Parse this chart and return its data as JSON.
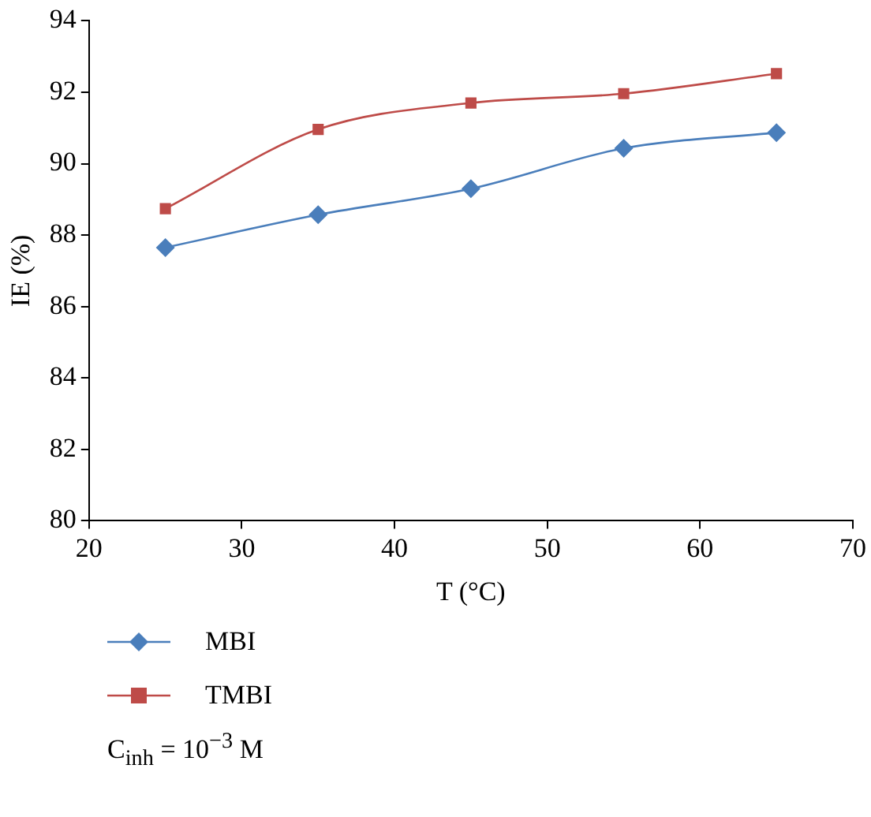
{
  "chart_data": {
    "type": "line",
    "xlabel": "T (°C)",
    "ylabel": "IE (%)",
    "x": [
      25,
      35,
      45,
      55,
      65
    ],
    "series": [
      {
        "name": "MBI",
        "color": "#4a7ebb",
        "marker": "diamond",
        "values": [
          87.65,
          88.57,
          89.3,
          90.43,
          90.87
        ]
      },
      {
        "name": "TMBI",
        "color": "#be4b48",
        "marker": "square",
        "values": [
          88.74,
          90.96,
          91.7,
          91.96,
          92.52
        ]
      }
    ],
    "xlim": [
      20,
      70
    ],
    "xticks": [
      20,
      30,
      40,
      50,
      60,
      70
    ],
    "ylim": [
      80,
      94
    ],
    "yticks": [
      80,
      82,
      84,
      86,
      88,
      90,
      92,
      94
    ],
    "grid": false,
    "legend": "bottom",
    "line_style": "solid",
    "annotations": [
      "C$_{inh}$ = 10$^{−3}$ M"
    ]
  }
}
